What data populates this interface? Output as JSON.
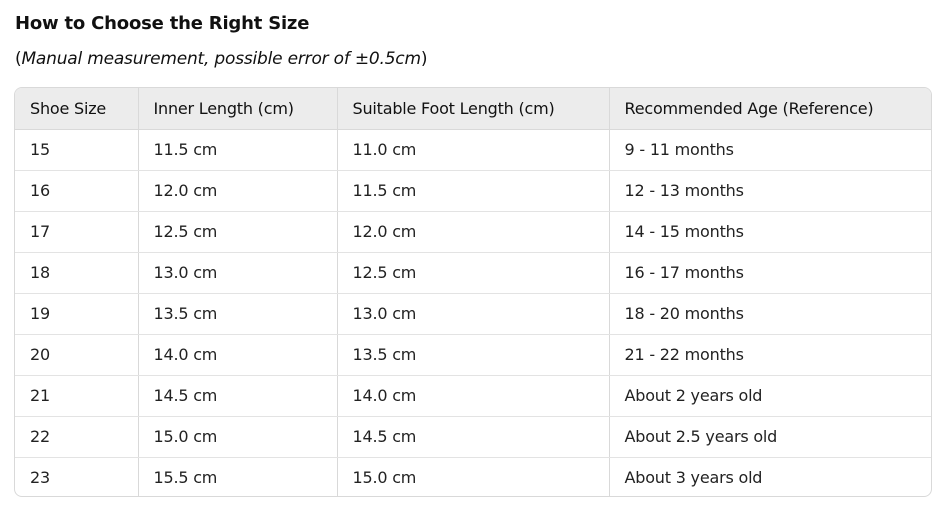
{
  "title": "How to Choose the Right Size",
  "note": {
    "open": "(",
    "text": "Manual measurement, possible error of ±0.5cm",
    "close": ")"
  },
  "table": {
    "headers": [
      "Shoe Size",
      "Inner Length (cm)",
      "Suitable Foot Length (cm)",
      "Recommended Age (Reference)"
    ],
    "rows": [
      [
        "15",
        "11.5 cm",
        "11.0 cm",
        "9 - 11 months"
      ],
      [
        "16",
        "12.0 cm",
        "11.5 cm",
        "12 - 13 months"
      ],
      [
        "17",
        "12.5 cm",
        "12.0 cm",
        "14 - 15 months"
      ],
      [
        "18",
        "13.0 cm",
        "12.5 cm",
        "16 - 17 months"
      ],
      [
        "19",
        "13.5 cm",
        "13.0 cm",
        "18 - 20 months"
      ],
      [
        "20",
        "14.0 cm",
        "13.5 cm",
        "21 - 22 months"
      ],
      [
        "21",
        "14.5 cm",
        "14.0 cm",
        "About 2 years old"
      ],
      [
        "22",
        "15.0 cm",
        "14.5 cm",
        "About 2.5 years old"
      ],
      [
        "23",
        "15.5 cm",
        "15.0 cm",
        "About 3 years old"
      ]
    ]
  }
}
